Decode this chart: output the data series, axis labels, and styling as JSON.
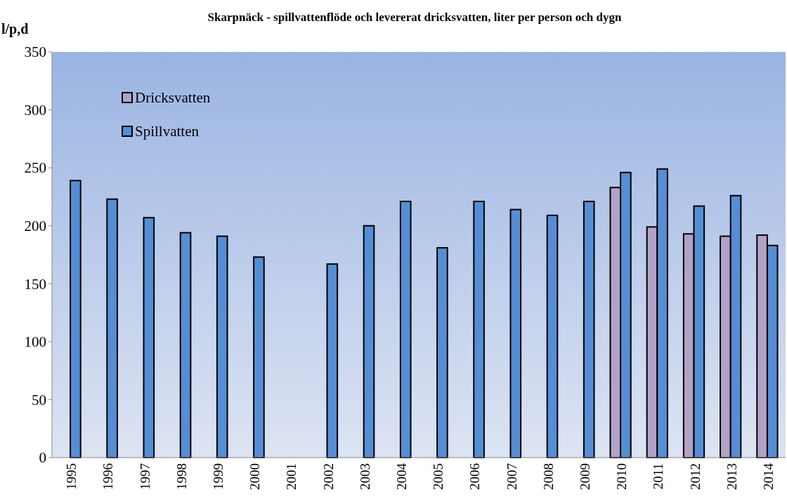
{
  "chart_data": {
    "type": "bar",
    "title": "Skarpnäck - spillvattenflöde och levererat dricksvatten, liter per person och dygn",
    "ylabel": "l/p,d",
    "categories": [
      "1995",
      "1996",
      "1997",
      "1998",
      "1999",
      "2000",
      "2001",
      "2002",
      "2003",
      "2004",
      "2005",
      "2006",
      "2007",
      "2008",
      "2009",
      "2010",
      "2011",
      "2012",
      "2013",
      "2014"
    ],
    "series": [
      {
        "name": "Dricksvatten",
        "color": "#b3a2c7",
        "values": [
          null,
          null,
          null,
          null,
          null,
          null,
          null,
          null,
          null,
          null,
          null,
          null,
          null,
          null,
          null,
          233,
          199,
          193,
          191,
          192
        ]
      },
      {
        "name": "Spillvatten",
        "color": "#558ed5",
        "values": [
          239,
          223,
          207,
          194,
          191,
          173,
          null,
          167,
          200,
          221,
          181,
          221,
          214,
          209,
          221,
          246,
          249,
          217,
          226,
          183
        ]
      }
    ],
    "ylim": [
      0,
      350
    ],
    "yticks": [
      0,
      50,
      100,
      150,
      200,
      250,
      300,
      350
    ],
    "grid": false,
    "legend": "top left"
  }
}
